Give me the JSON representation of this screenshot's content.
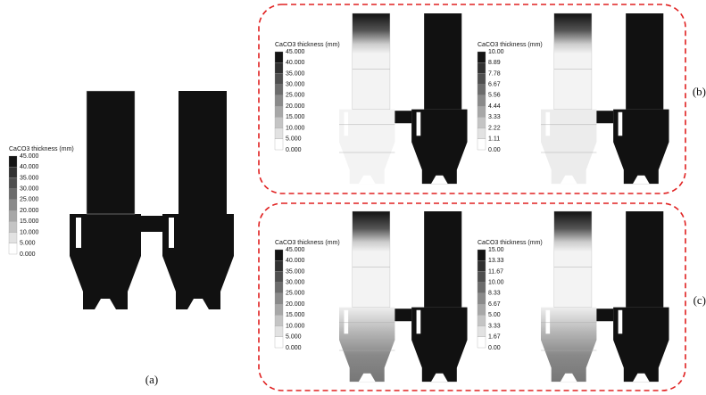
{
  "panels": [
    {
      "label": "(a)",
      "legends": [
        {
          "title": "CaCO3 thickness (mm)",
          "ticks": [
            "45.000",
            "40.000",
            "35.000",
            "30.000",
            "25.000",
            "20.000",
            "15.000",
            "10.000",
            "5.000",
            "0.000"
          ]
        }
      ]
    },
    {
      "label": "(b)",
      "legends": [
        {
          "title": "CaCO3 thickness (mm)",
          "ticks": [
            "45.000",
            "40.000",
            "35.000",
            "30.000",
            "25.000",
            "20.000",
            "15.000",
            "10.000",
            "5.000",
            "0.000"
          ]
        },
        {
          "title": "CaCO3 thickness (mm)",
          "ticks": [
            "10.00",
            "8.89",
            "7.78",
            "6.67",
            "5.56",
            "4.44",
            "3.33",
            "2.22",
            "1.11",
            "0.00"
          ]
        }
      ]
    },
    {
      "label": "(c)",
      "legends": [
        {
          "title": "CaCO3 thickness (mm)",
          "ticks": [
            "45.000",
            "40.000",
            "35.000",
            "30.000",
            "25.000",
            "20.000",
            "15.000",
            "10.000",
            "5.000",
            "0.000"
          ]
        },
        {
          "title": "CaCO3 thickness (mm)",
          "ticks": [
            "15.00",
            "13.33",
            "11.67",
            "10.00",
            "8.33",
            "6.67",
            "5.00",
            "3.33",
            "1.67",
            "0.00"
          ]
        }
      ]
    }
  ]
}
